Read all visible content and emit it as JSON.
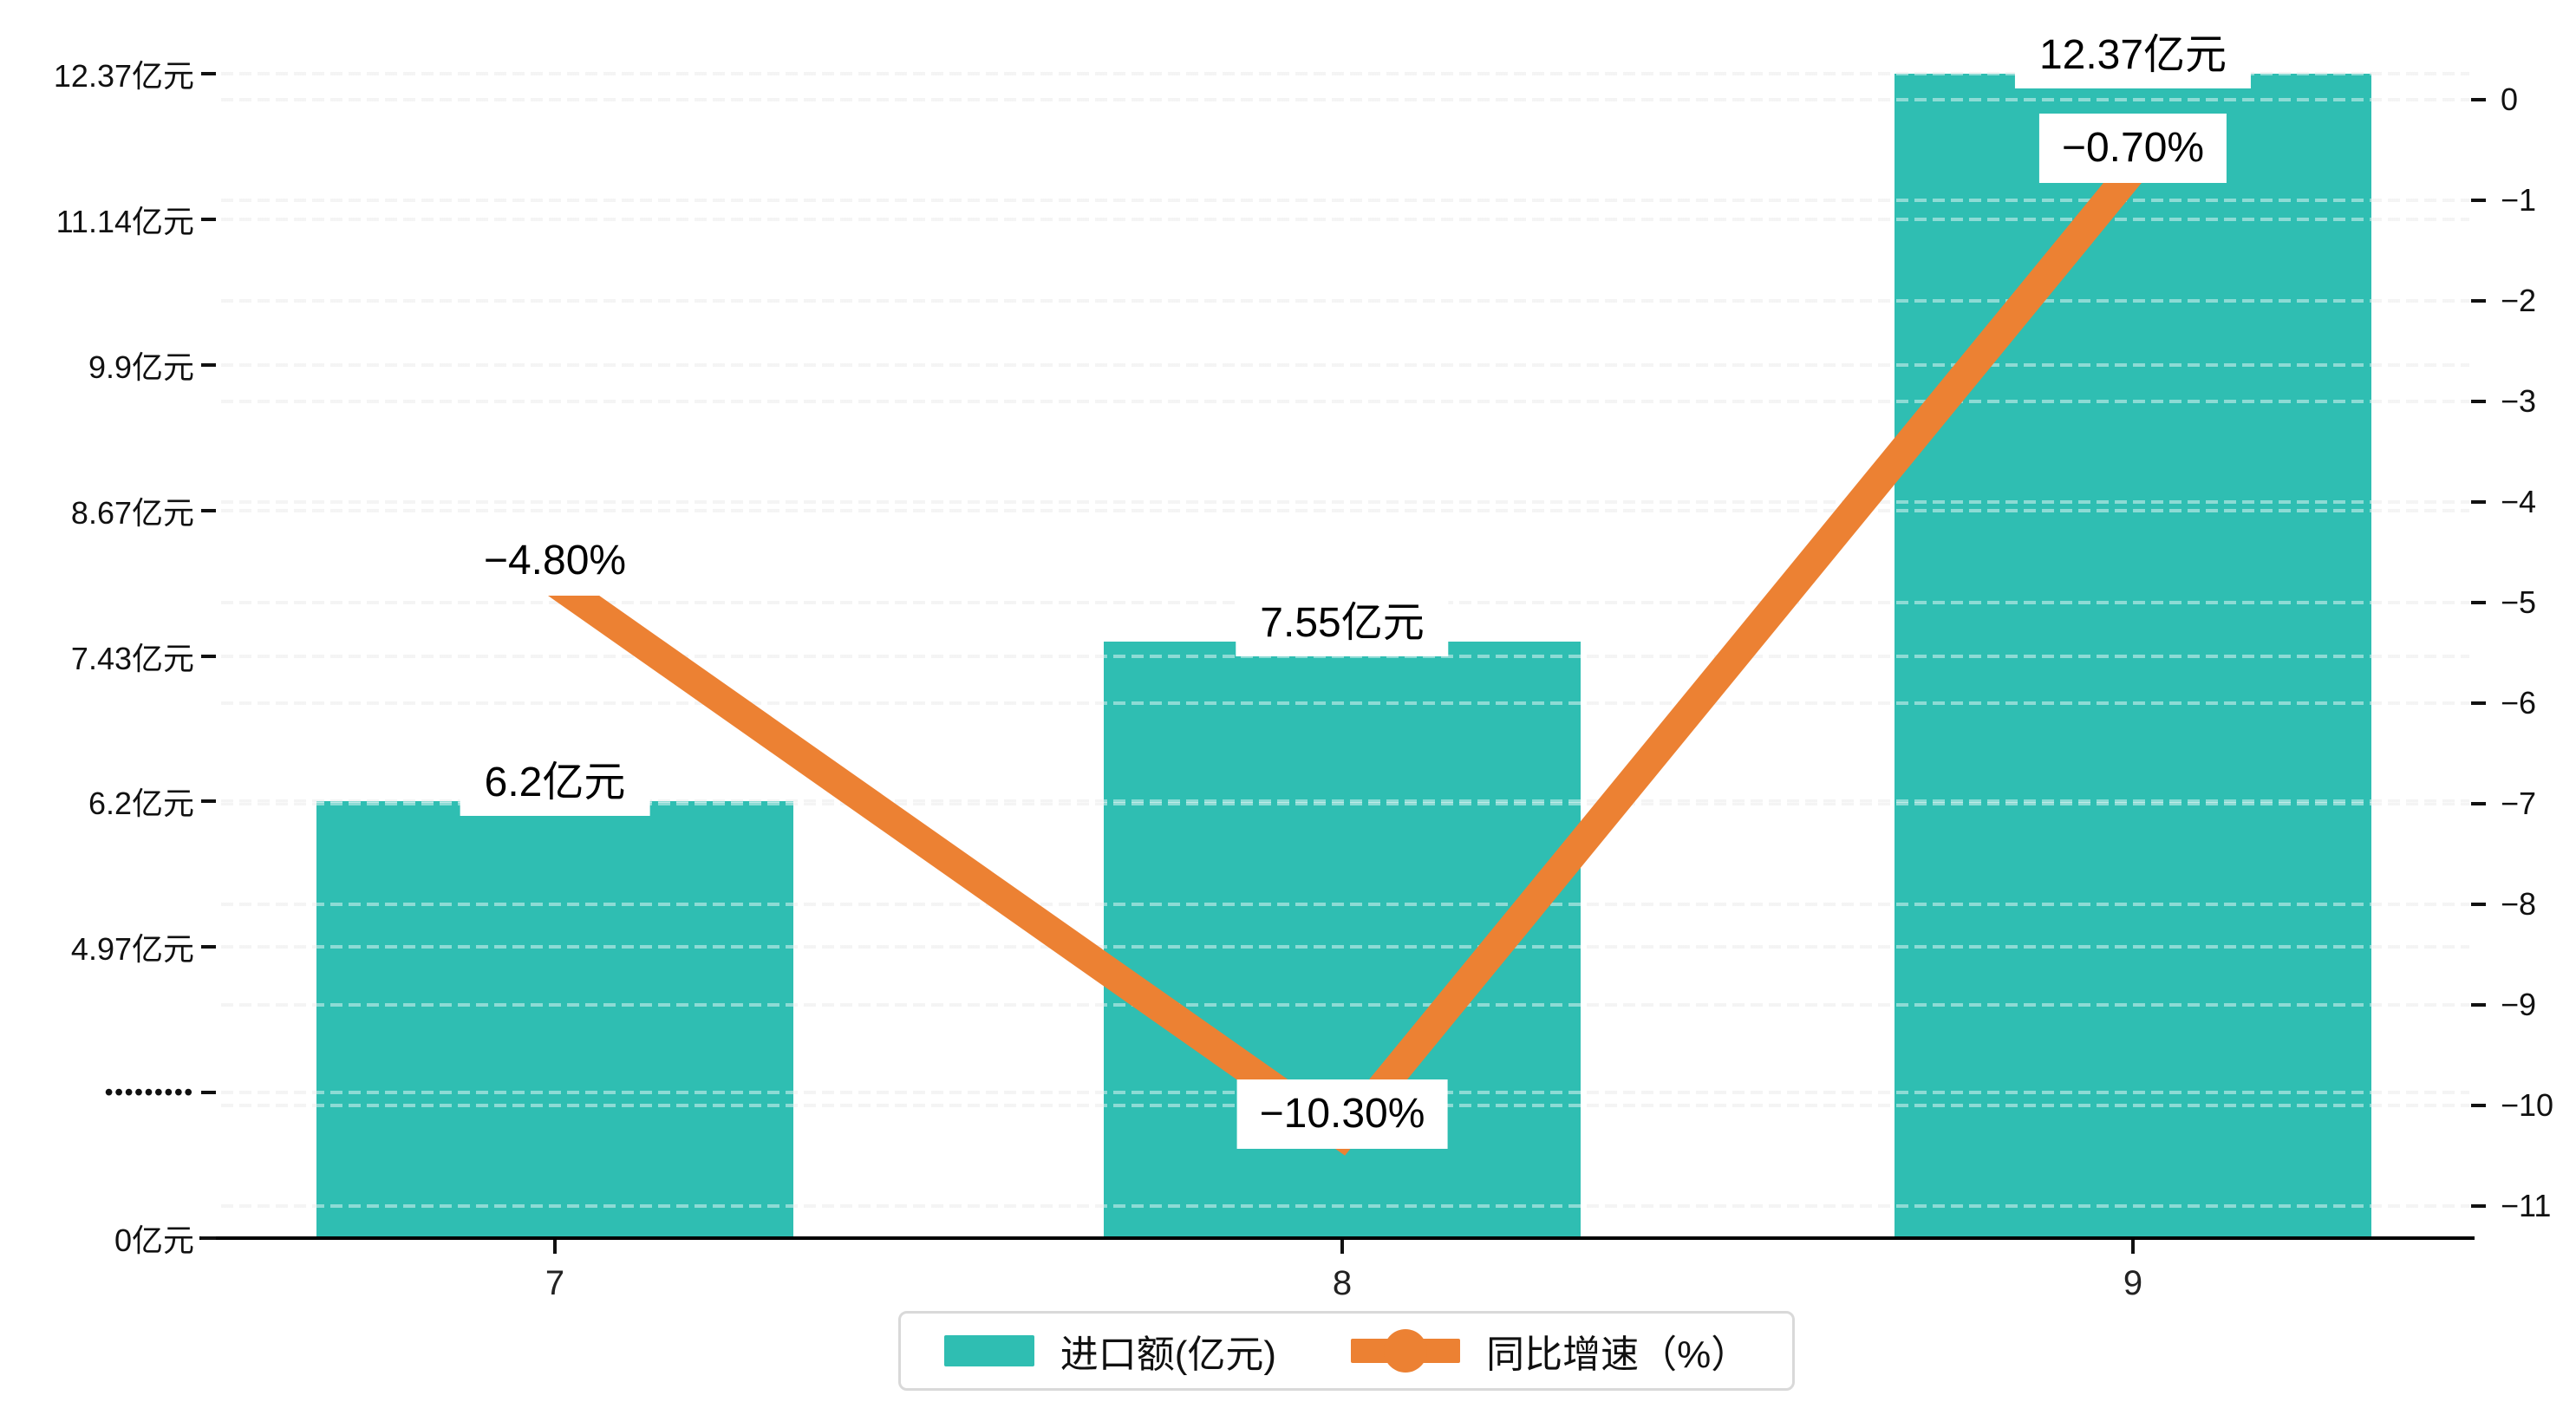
{
  "chart_data": {
    "type": "bar",
    "subtype": "bar-line-combo",
    "categories": [
      "7",
      "8",
      "9"
    ],
    "series": [
      {
        "name": "进口额(亿元)",
        "type": "bar",
        "axis": "left",
        "color": "#2fbeb2",
        "values": [
          6.2,
          7.55,
          12.37
        ],
        "data_labels": [
          "6.2亿元",
          "7.55亿元",
          "12.37亿元"
        ]
      },
      {
        "name": "同比增速（%）",
        "type": "line",
        "axis": "right",
        "color": "#ec8133",
        "values": [
          -4.8,
          -10.3,
          -0.7
        ],
        "data_labels": [
          "−4.80%",
          "−10.30%",
          "−0.70%"
        ]
      }
    ],
    "left_axis": {
      "tick_values": [
        0,
        2.474,
        4.97,
        6.2,
        7.43,
        8.67,
        9.9,
        11.14,
        12.37
      ],
      "tick_labels": [
        "0亿元",
        "•••••••••",
        "4.97亿元",
        "6.2亿元",
        "7.43亿元",
        "8.67亿元",
        "9.9亿元",
        "11.14亿元",
        "12.37亿元"
      ]
    },
    "right_axis": {
      "max": 0,
      "min": -11,
      "tick_values": [
        0,
        -1,
        -2,
        -3,
        -4,
        -5,
        -6,
        -7,
        -8,
        -9,
        -10,
        -11
      ],
      "tick_labels": [
        "0",
        "−1",
        "−2",
        "−3",
        "−4",
        "−5",
        "−6",
        "−7",
        "−8",
        "−9",
        "−10",
        "−11"
      ]
    },
    "grid": true,
    "legend_position": "bottom",
    "title": ""
  },
  "colors": {
    "bar": "#2fbeb2",
    "line": "#ec8133",
    "axis_line": "#000000",
    "gridline": "#ececec",
    "label_background": "#ffffff",
    "text": "#111111"
  }
}
